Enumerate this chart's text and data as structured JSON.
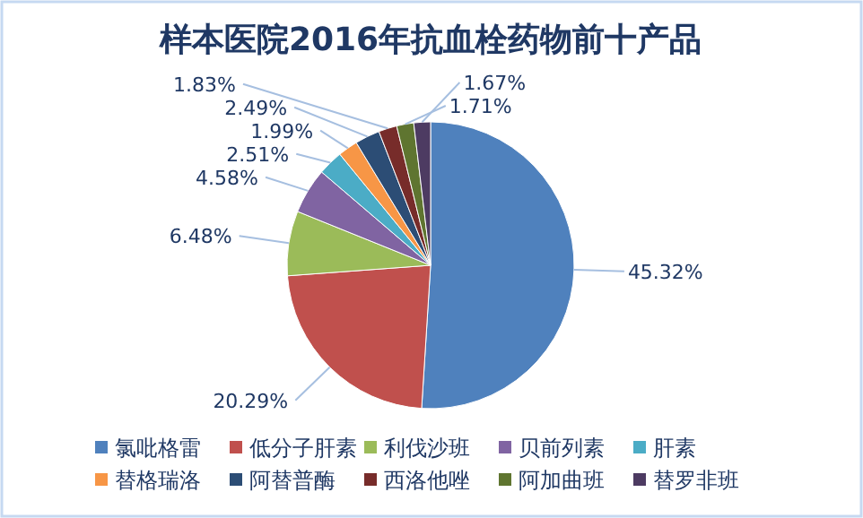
{
  "chart_data": {
    "type": "pie",
    "title": "样本医院2016年抗血栓药物前十产品",
    "categories": [
      "氯吡格雷",
      "低分子肝素",
      "利伐沙班",
      "贝前列素",
      "肝素",
      "替格瑞洛",
      "阿替普酶",
      "西洛他唑",
      "阿加曲班",
      "替罗非班"
    ],
    "values": [
      45.32,
      20.29,
      6.48,
      4.58,
      2.51,
      1.99,
      2.49,
      1.83,
      1.71,
      1.67
    ],
    "value_labels": [
      "45.32%",
      "20.29%",
      "6.48%",
      "4.58%",
      "2.51%",
      "1.99%",
      "2.49%",
      "1.83%",
      "1.71%",
      "1.67%"
    ],
    "colors": [
      "#4f81bd",
      "#c0504d",
      "#9bbb59",
      "#8064a2",
      "#4bacc6",
      "#f79646",
      "#2c4d75",
      "#772c2a",
      "#5f7530",
      "#4d3b62"
    ],
    "legend": "bottom"
  }
}
